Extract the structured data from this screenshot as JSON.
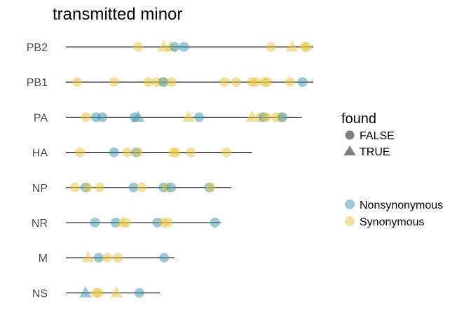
{
  "chart_data": {
    "type": "scatter",
    "title": "transmitted minor",
    "xlabel": "",
    "ylabel": "",
    "grid": false,
    "categories": [
      "PB2",
      "PB1",
      "PA",
      "HA",
      "NP",
      "NR",
      "M",
      "NS"
    ],
    "segment_lengths": [
      2341,
      2341,
      2233,
      1762,
      1565,
      1467,
      1027,
      890
    ],
    "x_range": [
      0,
      2341
    ],
    "colors": {
      "Nonsynonymous": "#3b93aa",
      "Synonymous": "#e8c53a"
    },
    "shape_legend": {
      "title": "found",
      "entries": [
        {
          "label": "FALSE",
          "shape": "circle"
        },
        {
          "label": "TRUE",
          "shape": "triangle"
        }
      ]
    },
    "color_legend": {
      "entries": [
        {
          "label": "Nonsynonymous",
          "color": "#3b93aa"
        },
        {
          "label": "Synonymous",
          "color": "#e8c53a"
        }
      ]
    },
    "legend_position": "right",
    "series": [
      {
        "segment": "PB2",
        "pos": 685,
        "class": "Synonymous",
        "found": false
      },
      {
        "segment": "PB2",
        "pos": 925,
        "class": "Synonymous",
        "found": true
      },
      {
        "segment": "PB2",
        "pos": 990,
        "class": "Synonymous",
        "found": true
      },
      {
        "segment": "PB2",
        "pos": 1030,
        "class": "Nonsynonymous",
        "found": false
      },
      {
        "segment": "PB2",
        "pos": 1118,
        "class": "Nonsynonymous",
        "found": false
      },
      {
        "segment": "PB2",
        "pos": 1940,
        "class": "Synonymous",
        "found": false
      },
      {
        "segment": "PB2",
        "pos": 2140,
        "class": "Synonymous",
        "found": true
      },
      {
        "segment": "PB2",
        "pos": 2260,
        "class": "Synonymous",
        "found": false
      },
      {
        "segment": "PB2",
        "pos": 2275,
        "class": "Synonymous",
        "found": false
      },
      {
        "segment": "PB1",
        "pos": 105,
        "class": "Synonymous",
        "found": false
      },
      {
        "segment": "PB1",
        "pos": 455,
        "class": "Synonymous",
        "found": false
      },
      {
        "segment": "PB1",
        "pos": 780,
        "class": "Synonymous",
        "found": false
      },
      {
        "segment": "PB1",
        "pos": 860,
        "class": "Synonymous",
        "found": false
      },
      {
        "segment": "PB1",
        "pos": 915,
        "class": "Synonymous",
        "found": false
      },
      {
        "segment": "PB1",
        "pos": 925,
        "class": "Nonsynonymous",
        "found": false
      },
      {
        "segment": "PB1",
        "pos": 1000,
        "class": "Synonymous",
        "found": false
      },
      {
        "segment": "PB1",
        "pos": 1500,
        "class": "Synonymous",
        "found": false
      },
      {
        "segment": "PB1",
        "pos": 1610,
        "class": "Synonymous",
        "found": false
      },
      {
        "segment": "PB1",
        "pos": 1760,
        "class": "Synonymous",
        "found": false
      },
      {
        "segment": "PB1",
        "pos": 1800,
        "class": "Synonymous",
        "found": false
      },
      {
        "segment": "PB1",
        "pos": 1880,
        "class": "Synonymous",
        "found": false
      },
      {
        "segment": "PB1",
        "pos": 1905,
        "class": "Synonymous",
        "found": false
      },
      {
        "segment": "PB1",
        "pos": 2120,
        "class": "Synonymous",
        "found": false
      },
      {
        "segment": "PB1",
        "pos": 2240,
        "class": "Nonsynonymous",
        "found": false
      },
      {
        "segment": "PA",
        "pos": 190,
        "class": "Synonymous",
        "found": false
      },
      {
        "segment": "PA",
        "pos": 285,
        "class": "Nonsynonymous",
        "found": false
      },
      {
        "segment": "PA",
        "pos": 345,
        "class": "Nonsynonymous",
        "found": false
      },
      {
        "segment": "PA",
        "pos": 650,
        "class": "Nonsynonymous",
        "found": false
      },
      {
        "segment": "PA",
        "pos": 685,
        "class": "Nonsynonymous",
        "found": true
      },
      {
        "segment": "PA",
        "pos": 1160,
        "class": "Synonymous",
        "found": true
      },
      {
        "segment": "PA",
        "pos": 1260,
        "class": "Nonsynonymous",
        "found": false
      },
      {
        "segment": "PA",
        "pos": 1760,
        "class": "Synonymous",
        "found": true
      },
      {
        "segment": "PA",
        "pos": 1840,
        "class": "Synonymous",
        "found": false
      },
      {
        "segment": "PA",
        "pos": 1870,
        "class": "Nonsynonymous",
        "found": false
      },
      {
        "segment": "PA",
        "pos": 1900,
        "class": "Synonymous",
        "found": false
      },
      {
        "segment": "PA",
        "pos": 1990,
        "class": "Synonymous",
        "found": false
      },
      {
        "segment": "PA",
        "pos": 2035,
        "class": "Synonymous",
        "found": false
      },
      {
        "segment": "PA",
        "pos": 2050,
        "class": "Nonsynonymous",
        "found": false
      },
      {
        "segment": "HA",
        "pos": 135,
        "class": "Synonymous",
        "found": false
      },
      {
        "segment": "HA",
        "pos": 455,
        "class": "Nonsynonymous",
        "found": false
      },
      {
        "segment": "HA",
        "pos": 580,
        "class": "Synonymous",
        "found": false
      },
      {
        "segment": "HA",
        "pos": 665,
        "class": "Nonsynonymous",
        "found": false
      },
      {
        "segment": "HA",
        "pos": 680,
        "class": "Synonymous",
        "found": false
      },
      {
        "segment": "HA",
        "pos": 1015,
        "class": "Synonymous",
        "found": false
      },
      {
        "segment": "HA",
        "pos": 1040,
        "class": "Synonymous",
        "found": false
      },
      {
        "segment": "HA",
        "pos": 1185,
        "class": "Synonymous",
        "found": false
      },
      {
        "segment": "HA",
        "pos": 1520,
        "class": "Synonymous",
        "found": false
      },
      {
        "segment": "NP",
        "pos": 85,
        "class": "Synonymous",
        "found": false
      },
      {
        "segment": "NP",
        "pos": 185,
        "class": "Nonsynonymous",
        "found": false
      },
      {
        "segment": "NP",
        "pos": 205,
        "class": "Synonymous",
        "found": false
      },
      {
        "segment": "NP",
        "pos": 320,
        "class": "Synonymous",
        "found": false
      },
      {
        "segment": "NP",
        "pos": 640,
        "class": "Nonsynonymous",
        "found": false
      },
      {
        "segment": "NP",
        "pos": 720,
        "class": "Synonymous",
        "found": false
      },
      {
        "segment": "NP",
        "pos": 925,
        "class": "Nonsynonymous",
        "found": false
      },
      {
        "segment": "NP",
        "pos": 955,
        "class": "Synonymous",
        "found": false
      },
      {
        "segment": "NP",
        "pos": 995,
        "class": "Nonsynonymous",
        "found": false
      },
      {
        "segment": "NP",
        "pos": 1355,
        "class": "Nonsynonymous",
        "found": false
      },
      {
        "segment": "NP",
        "pos": 1370,
        "class": "Synonymous",
        "found": false
      },
      {
        "segment": "NR",
        "pos": 275,
        "class": "Nonsynonymous",
        "found": false
      },
      {
        "segment": "NR",
        "pos": 470,
        "class": "Nonsynonymous",
        "found": false
      },
      {
        "segment": "NR",
        "pos": 535,
        "class": "Synonymous",
        "found": true
      },
      {
        "segment": "NR",
        "pos": 570,
        "class": "Synonymous",
        "found": false
      },
      {
        "segment": "NR",
        "pos": 865,
        "class": "Nonsynonymous",
        "found": false
      },
      {
        "segment": "NR",
        "pos": 925,
        "class": "Synonymous",
        "found": false
      },
      {
        "segment": "NR",
        "pos": 965,
        "class": "Synonymous",
        "found": false
      },
      {
        "segment": "NR",
        "pos": 1410,
        "class": "Nonsynonymous",
        "found": false
      },
      {
        "segment": "M",
        "pos": 210,
        "class": "Synonymous",
        "found": true
      },
      {
        "segment": "M",
        "pos": 310,
        "class": "Nonsynonymous",
        "found": false
      },
      {
        "segment": "M",
        "pos": 390,
        "class": "Synonymous",
        "found": false
      },
      {
        "segment": "M",
        "pos": 490,
        "class": "Synonymous",
        "found": false
      },
      {
        "segment": "M",
        "pos": 930,
        "class": "Nonsynonymous",
        "found": false
      },
      {
        "segment": "NS",
        "pos": 185,
        "class": "Nonsynonymous",
        "found": true
      },
      {
        "segment": "NS",
        "pos": 285,
        "class": "Synonymous",
        "found": false
      },
      {
        "segment": "NS",
        "pos": 310,
        "class": "Synonymous",
        "found": false
      },
      {
        "segment": "NS",
        "pos": 480,
        "class": "Synonymous",
        "found": true
      },
      {
        "segment": "NS",
        "pos": 695,
        "class": "Nonsynonymous",
        "found": false
      }
    ]
  }
}
